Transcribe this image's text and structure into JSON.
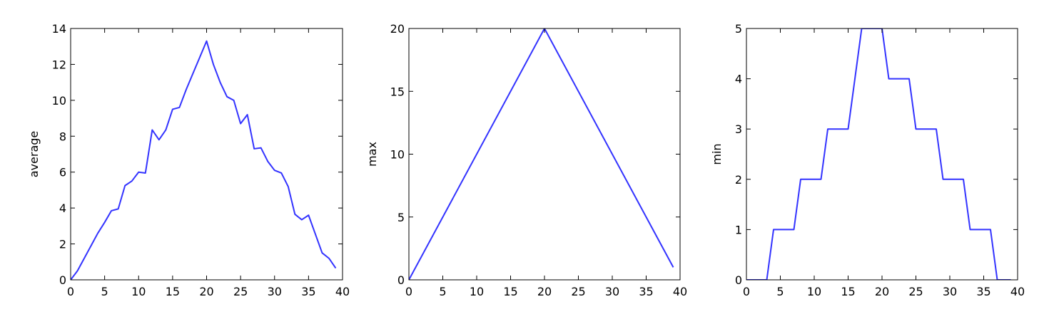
{
  "chart_data": [
    {
      "type": "line",
      "xlabel": "",
      "ylabel": "average",
      "xlim": [
        0,
        40
      ],
      "ylim": [
        0,
        14
      ],
      "xticks": [
        0,
        5,
        10,
        15,
        20,
        25,
        30,
        35,
        40
      ],
      "yticks": [
        0,
        2,
        4,
        6,
        8,
        10,
        12,
        14
      ],
      "grid": false,
      "color": "#3333ff",
      "series": [
        {
          "x": [
            0,
            1,
            2,
            3,
            4,
            5,
            6,
            7,
            8,
            9,
            10,
            11,
            12,
            13,
            14,
            15,
            16,
            17,
            18,
            19,
            20,
            21,
            22,
            23,
            24,
            25,
            26,
            27,
            28,
            29,
            30,
            31,
            32,
            33,
            34,
            35,
            36,
            37,
            38,
            39
          ],
          "y": [
            0.0,
            0.5,
            1.2,
            1.9,
            2.6,
            3.2,
            3.85,
            3.95,
            5.25,
            5.5,
            6.0,
            5.95,
            8.35,
            7.8,
            8.35,
            9.5,
            9.6,
            10.6,
            11.5,
            12.4,
            13.3,
            12.0,
            11.0,
            10.2,
            10.0,
            8.7,
            9.2,
            7.3,
            7.35,
            6.6,
            6.1,
            5.95,
            5.2,
            3.65,
            3.35,
            3.6,
            2.55,
            1.5,
            1.2,
            0.65
          ]
        }
      ]
    },
    {
      "type": "line",
      "xlabel": "",
      "ylabel": "max",
      "xlim": [
        0,
        40
      ],
      "ylim": [
        0,
        20
      ],
      "xticks": [
        0,
        5,
        10,
        15,
        20,
        25,
        30,
        35,
        40
      ],
      "yticks": [
        0,
        5,
        10,
        15,
        20
      ],
      "grid": false,
      "color": "#3333ff",
      "series": [
        {
          "x": [
            0,
            20,
            39
          ],
          "y": [
            0,
            20,
            1
          ]
        }
      ]
    },
    {
      "type": "line",
      "xlabel": "",
      "ylabel": "min",
      "xlim": [
        0,
        40
      ],
      "ylim": [
        0,
        5
      ],
      "xticks": [
        0,
        5,
        10,
        15,
        20,
        25,
        30,
        35,
        40
      ],
      "yticks": [
        0,
        1,
        2,
        3,
        4,
        5
      ],
      "grid": false,
      "color": "#3333ff",
      "series": [
        {
          "x": [
            0,
            1,
            2,
            3,
            4,
            5,
            6,
            7,
            8,
            9,
            10,
            11,
            12,
            13,
            14,
            15,
            16,
            17,
            18,
            19,
            20,
            21,
            22,
            23,
            24,
            25,
            26,
            27,
            28,
            29,
            30,
            31,
            32,
            33,
            34,
            35,
            36,
            37,
            38,
            39
          ],
          "y": [
            0,
            0,
            0,
            0,
            1,
            1,
            1,
            1,
            2,
            2,
            2,
            2,
            3,
            3,
            3,
            3,
            4,
            5,
            5,
            5,
            5,
            4,
            4,
            4,
            4,
            3,
            3,
            3,
            3,
            2,
            2,
            2,
            2,
            1,
            1,
            1,
            1,
            0,
            0,
            0
          ]
        }
      ]
    }
  ]
}
